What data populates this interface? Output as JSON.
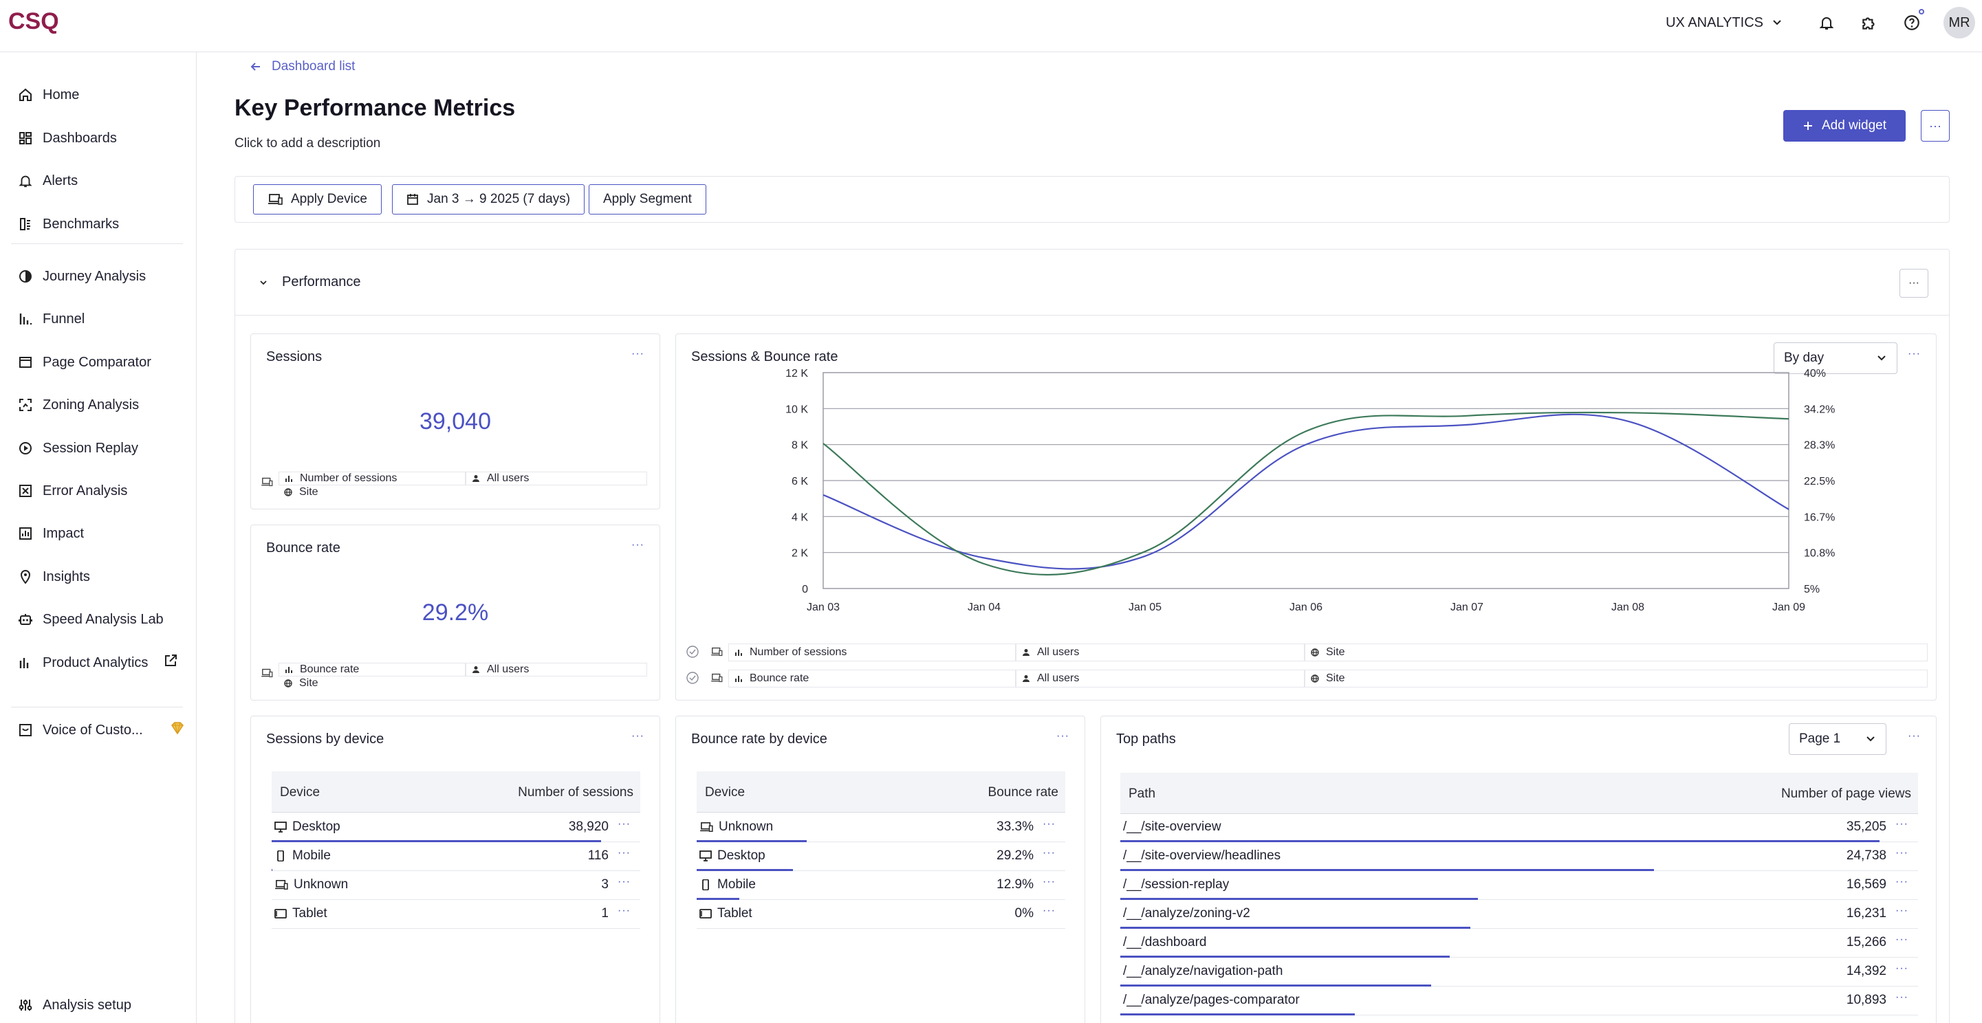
{
  "topbar": {
    "logo_text": "CSQ",
    "workspace": "UX ANALYTICS",
    "avatar": "MR",
    "icons": [
      "bell-icon",
      "puzzle-icon",
      "help-icon"
    ],
    "accent": "#4b52c2",
    "logo_color": "#8f1d4c"
  },
  "sidebar": {
    "items": [
      {
        "label": "Home",
        "icon": "home-icon"
      },
      {
        "label": "Dashboards",
        "icon": "dashboards-icon"
      },
      {
        "label": "Alerts",
        "icon": "bell-icon"
      },
      {
        "label": "Benchmarks",
        "icon": "benchmarks-icon"
      },
      {
        "label": "Journey Analysis",
        "icon": "journey-icon"
      },
      {
        "label": "Funnel",
        "icon": "funnel-icon"
      },
      {
        "label": "Page Comparator",
        "icon": "page-comparator-icon"
      },
      {
        "label": "Zoning Analysis",
        "icon": "zoning-icon"
      },
      {
        "label": "Session Replay",
        "icon": "play-icon"
      },
      {
        "label": "Error Analysis",
        "icon": "error-icon"
      },
      {
        "label": "Impact",
        "icon": "impact-icon"
      },
      {
        "label": "Insights",
        "icon": "insights-icon"
      },
      {
        "label": "Speed Analysis Lab",
        "icon": "robot-icon"
      },
      {
        "label": "Product Analytics",
        "icon": "product-analytics-icon"
      },
      {
        "label": "Voice of Custo...",
        "icon": "voice-icon"
      },
      {
        "label": "Analysis setup",
        "icon": "settings-sliders-icon"
      }
    ]
  },
  "header": {
    "back_label": "Dashboard list",
    "title": "Key Performance Metrics",
    "description": "Click to add a description",
    "add_widget": "Add widget"
  },
  "filters": {
    "device": "Apply Device",
    "date": "Jan 3 → 9 2025 (7 days)",
    "segment": "Apply Segment"
  },
  "section": {
    "title": "Performance"
  },
  "sessions_card": {
    "title": "Sessions",
    "value": "39,040",
    "metric": "Number of sessions",
    "segment": "All users",
    "scope": "Site"
  },
  "bounce_card": {
    "title": "Bounce rate",
    "value": "29.2%",
    "metric": "Bounce rate",
    "segment": "All users",
    "scope": "Site"
  },
  "trend_card": {
    "title": "Sessions & Bounce rate",
    "granularity": "By day",
    "legend": [
      {
        "metric": "Number of sessions",
        "segment": "All users",
        "scope": "Site"
      },
      {
        "metric": "Bounce rate",
        "segment": "All users",
        "scope": "Site"
      }
    ]
  },
  "chart_data": {
    "type": "line",
    "x": [
      "Jan 03",
      "Jan 04",
      "Jan 05",
      "Jan 06",
      "Jan 07",
      "Jan 08",
      "Jan 09"
    ],
    "y_left_ticks": [
      "0",
      "2 K",
      "4 K",
      "6 K",
      "8 K",
      "10 K",
      "12 K"
    ],
    "y_right_ticks": [
      "5%",
      "10.8%",
      "16.7%",
      "22.5%",
      "28.3%",
      "34.2%",
      "40%"
    ],
    "ylim_left": [
      0,
      12000
    ],
    "ylim_right": [
      5,
      40
    ],
    "grid": true,
    "series": [
      {
        "axis": "left",
        "color": "#4b52c2",
        "values": [
          5200,
          1700,
          1800,
          8000,
          9100,
          9300,
          4400
        ]
      },
      {
        "axis": "right",
        "color": "#3d7a5a",
        "values": [
          28.5,
          9,
          11,
          30.5,
          33,
          33.5,
          32.5
        ]
      }
    ]
  },
  "device_sessions": {
    "title": "Sessions by device",
    "col_label": "Device",
    "col_value": "Number of sessions",
    "rows": [
      {
        "label": "Desktop",
        "icon": "desktop-icon",
        "value": "38,920",
        "fill": 0.997
      },
      {
        "label": "Mobile",
        "icon": "mobile-icon",
        "value": "116",
        "fill": 0.003
      },
      {
        "label": "Unknown",
        "icon": "unknown-device-icon",
        "value": "3",
        "fill": 0
      },
      {
        "label": "Tablet",
        "icon": "tablet-icon",
        "value": "1",
        "fill": 0
      }
    ]
  },
  "device_bounce": {
    "title": "Bounce rate by device",
    "col_label": "Device",
    "col_value": "Bounce rate",
    "rows": [
      {
        "label": "Unknown",
        "icon": "unknown-device-icon",
        "value": "33.3%",
        "fill": 0.333
      },
      {
        "label": "Desktop",
        "icon": "desktop-icon",
        "value": "29.2%",
        "fill": 0.292
      },
      {
        "label": "Mobile",
        "icon": "mobile-icon",
        "value": "12.9%",
        "fill": 0.129
      },
      {
        "label": "Tablet",
        "icon": "tablet-icon",
        "value": "0%",
        "fill": 0
      }
    ]
  },
  "top_paths": {
    "title": "Top paths",
    "page": "Page 1",
    "col_label": "Path",
    "col_value": "Number of page views",
    "rows": [
      {
        "label": "/__/site-overview",
        "value": "35,205",
        "fill": 1.0
      },
      {
        "label": "/__/site-overview/headlines",
        "value": "24,738",
        "fill": 0.703
      },
      {
        "label": "/__/session-replay",
        "value": "16,569",
        "fill": 0.471
      },
      {
        "label": "/__/analyze/zoning-v2",
        "value": "16,231",
        "fill": 0.461
      },
      {
        "label": "/__/dashboard",
        "value": "15,266",
        "fill": 0.434
      },
      {
        "label": "/__/analyze/navigation-path",
        "value": "14,392",
        "fill": 0.409
      },
      {
        "label": "/__/analyze/pages-comparator",
        "value": "10,893",
        "fill": 0.309
      }
    ]
  }
}
